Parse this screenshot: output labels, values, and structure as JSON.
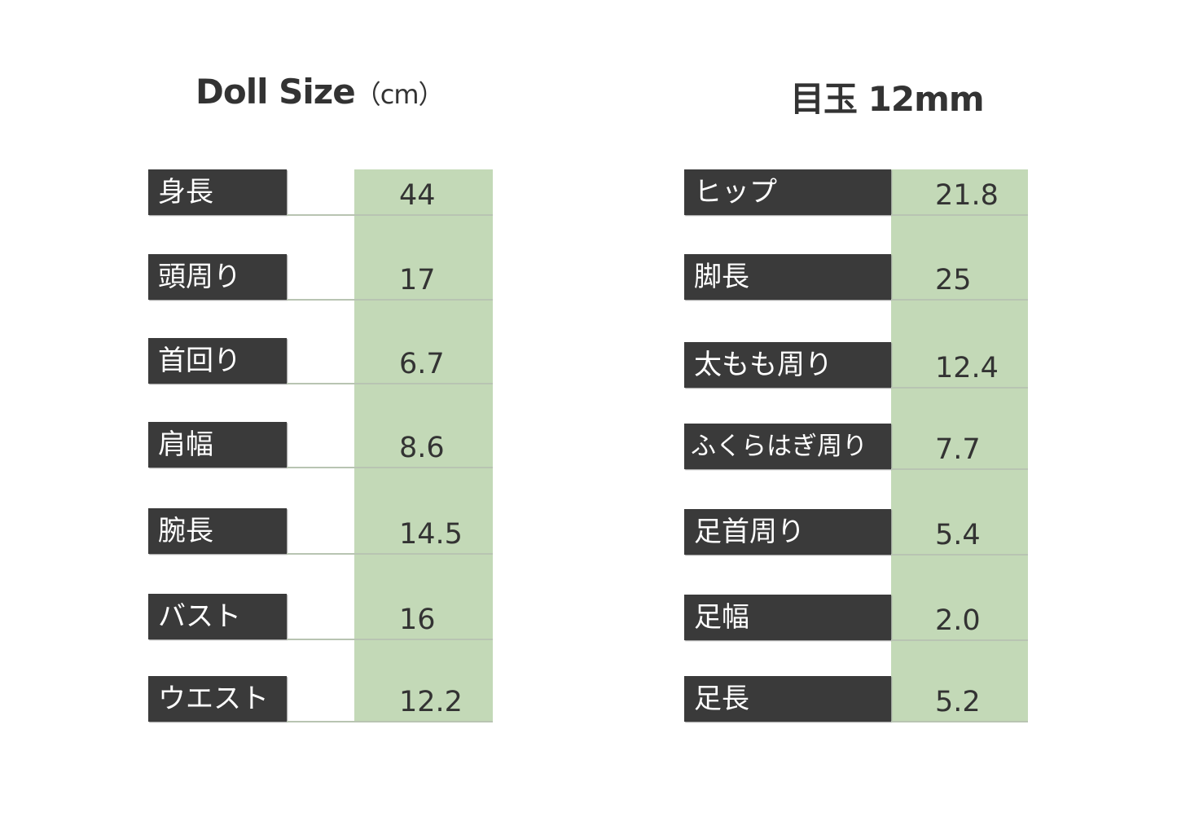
{
  "left": {
    "title": "Doll Size",
    "unit": "（cm）",
    "rows": [
      {
        "label": "身長",
        "value": "44"
      },
      {
        "label": "頭周り",
        "value": "17"
      },
      {
        "label": "首回り",
        "value": "6.7"
      },
      {
        "label": "肩幅",
        "value": "8.6"
      },
      {
        "label": "腕長",
        "value": "14.5"
      },
      {
        "label": "バスト",
        "value": "16"
      },
      {
        "label": "ウエスト",
        "value": "12.2"
      }
    ]
  },
  "right": {
    "title": "目玉 12mm",
    "rows": [
      {
        "label": "ヒップ",
        "value": "21.8"
      },
      {
        "label": "脚長",
        "value": "25"
      },
      {
        "label": "太もも周り",
        "value": "12.4"
      },
      {
        "label": "ふくらはぎ周り",
        "value": "7.7"
      },
      {
        "label": "足首周り",
        "value": "5.4"
      },
      {
        "label": "足幅",
        "value": "2.0"
      },
      {
        "label": "足長",
        "value": "5.2"
      }
    ]
  },
  "colors": {
    "label_bg": "#3a3a3a",
    "value_bg": "#c3d9b7"
  }
}
